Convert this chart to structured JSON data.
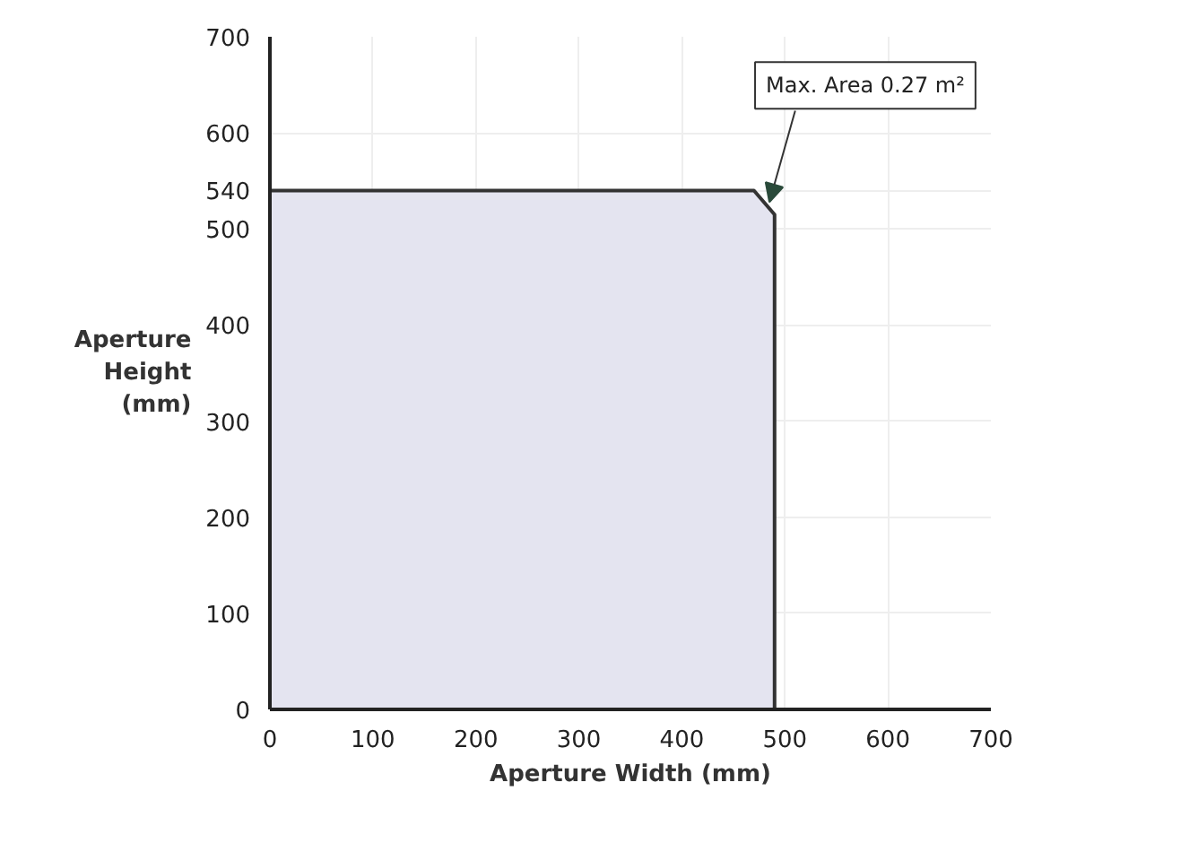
{
  "chart_data": {
    "type": "area",
    "xlabel": "Aperture Width (mm)",
    "ylabel": "Aperture Height (mm)",
    "x": [
      0,
      470,
      490,
      490
    ],
    "series": [
      {
        "color": "#e4e4f0",
        "values": [
          540,
          540,
          515,
          0
        ]
      }
    ],
    "xlim": [
      0,
      700
    ],
    "ylim": [
      0,
      700
    ],
    "xticks": [
      0,
      100,
      200,
      300,
      400,
      500,
      600,
      700
    ],
    "yticks": [
      0,
      100,
      200,
      300,
      400,
      500,
      540,
      600,
      700
    ],
    "grid": true,
    "annotations": [
      {
        "text": "Max. Area 0.27 m²",
        "x": 485,
        "y": 528
      }
    ]
  }
}
